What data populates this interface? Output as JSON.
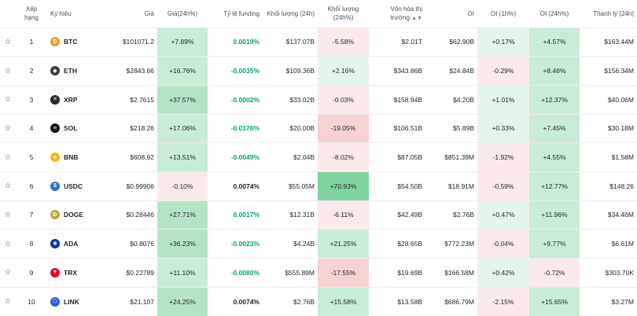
{
  "headers": {
    "rank": "Xếp hạng",
    "symbol": "Ký hiệu",
    "price": "Giá",
    "price_change": "Giá(24h%)",
    "funding": "Tỷ lệ funding",
    "volume": "Khối lượng (24h)",
    "volume_change": "Khối lượng (24h%)",
    "market_cap": "Vốn hóa thị trường",
    "oi": "OI",
    "oi_1h": "OI (1h%)",
    "oi_24h": "OI (24h%)",
    "liquidation": "Thanh lý (24h)"
  },
  "rows": [
    {
      "rank": "1",
      "symbol": "BTC",
      "icon": "btc-icon",
      "icon_color": "#f7931a",
      "icon_glyph": "₿",
      "price": "$101071.2",
      "price_change": "+7.89%",
      "pc_bg": "g2",
      "funding": "0.0019%",
      "f_cls": "fund-pos",
      "volume": "$137.07B",
      "volume_change": "-5.58%",
      "vc_bg": "r1",
      "market_cap": "$2.01T",
      "oi": "$62.90B",
      "oi_1h": "+0.17%",
      "o1_bg": "g1",
      "oi_24h": "+4.57%",
      "o24_bg": "g2",
      "liquidation": "$163.44M"
    },
    {
      "rank": "2",
      "symbol": "ETH",
      "icon": "eth-icon",
      "icon_color": "#3c3c3d",
      "icon_glyph": "◆",
      "price": "$2843.66",
      "price_change": "+16.76%",
      "pc_bg": "g2",
      "funding": "-0.0035%",
      "f_cls": "fund-pos",
      "volume": "$109.36B",
      "volume_change": "+2.16%",
      "vc_bg": "g1",
      "market_cap": "$343.86B",
      "oi": "$24.84B",
      "oi_1h": "-0.29%",
      "o1_bg": "r1",
      "oi_24h": "+8.46%",
      "o24_bg": "g2",
      "liquidation": "$156.34M"
    },
    {
      "rank": "3",
      "symbol": "XRP",
      "icon": "xrp-icon",
      "icon_color": "#23292f",
      "icon_glyph": "✕",
      "price": "$2.7615",
      "price_change": "+37.57%",
      "pc_bg": "g3",
      "funding": "-0.0002%",
      "f_cls": "fund-pos",
      "volume": "$33.02B",
      "volume_change": "-0.03%",
      "vc_bg": "r1",
      "market_cap": "$158.94B",
      "oi": "$4.20B",
      "oi_1h": "+1.01%",
      "o1_bg": "g1",
      "oi_24h": "+12.37%",
      "o24_bg": "g2",
      "liquidation": "$40.06M"
    },
    {
      "rank": "4",
      "symbol": "SOL",
      "icon": "sol-icon",
      "icon_color": "#14131a",
      "icon_glyph": "≡",
      "price": "$218.26",
      "price_change": "+17.06%",
      "pc_bg": "g2",
      "funding": "-0.0176%",
      "f_cls": "fund-pos",
      "volume": "$20.00B",
      "volume_change": "-19.05%",
      "vc_bg": "r2",
      "market_cap": "$106.51B",
      "oi": "$5.89B",
      "oi_1h": "+0.33%",
      "o1_bg": "g1",
      "oi_24h": "+7.45%",
      "o24_bg": "g2",
      "liquidation": "$30.18M"
    },
    {
      "rank": "5",
      "symbol": "BNB",
      "icon": "bnb-icon",
      "icon_color": "#f0b90b",
      "icon_glyph": "◈",
      "price": "$608.92",
      "price_change": "+13.51%",
      "pc_bg": "g2",
      "funding": "-0.0049%",
      "f_cls": "fund-pos",
      "volume": "$2.04B",
      "volume_change": "-8.02%",
      "vc_bg": "r1",
      "market_cap": "$87.05B",
      "oi": "$851.39M",
      "oi_1h": "-1.92%",
      "o1_bg": "r1",
      "oi_24h": "+4.55%",
      "o24_bg": "g2",
      "liquidation": "$1.58M"
    },
    {
      "rank": "6",
      "symbol": "USDC",
      "icon": "usdc-icon",
      "icon_color": "#2775ca",
      "icon_glyph": "$",
      "price": "$0.99906",
      "price_change": "-0.10%",
      "pc_bg": "r1",
      "funding": "0.0074%",
      "f_cls": "fund-neu",
      "volume": "$55.05M",
      "volume_change": "+70.93%",
      "vc_bg": "g4",
      "market_cap": "$54.50B",
      "oi": "$18.91M",
      "oi_1h": "-0.59%",
      "o1_bg": "r1",
      "oi_24h": "+12.77%",
      "o24_bg": "g2",
      "liquidation": "$148.26"
    },
    {
      "rank": "7",
      "symbol": "DOGE",
      "icon": "doge-icon",
      "icon_color": "#c2a633",
      "icon_glyph": "Ð",
      "price": "$0.28446",
      "price_change": "+27.71%",
      "pc_bg": "g3",
      "funding": "0.0017%",
      "f_cls": "fund-pos",
      "volume": "$12.31B",
      "volume_change": "-6.11%",
      "vc_bg": "r1",
      "market_cap": "$42.49B",
      "oi": "$2.76B",
      "oi_1h": "+0.47%",
      "o1_bg": "g1",
      "oi_24h": "+11.96%",
      "o24_bg": "g2",
      "liquidation": "$34.46M"
    },
    {
      "rank": "8",
      "symbol": "ADA",
      "icon": "ada-icon",
      "icon_color": "#0033ad",
      "icon_glyph": "✺",
      "price": "$0.8076",
      "price_change": "+36.23%",
      "pc_bg": "g3",
      "funding": "-0.0023%",
      "f_cls": "fund-pos",
      "volume": "$4.24B",
      "volume_change": "+21.25%",
      "vc_bg": "g2",
      "market_cap": "$28.65B",
      "oi": "$772.23M",
      "oi_1h": "-0.04%",
      "o1_bg": "r1",
      "oi_24h": "+9.77%",
      "o24_bg": "g2",
      "liquidation": "$6.61M"
    },
    {
      "rank": "9",
      "symbol": "TRX",
      "icon": "trx-icon",
      "icon_color": "#eb0029",
      "icon_glyph": "▼",
      "price": "$0.22789",
      "price_change": "+11.10%",
      "pc_bg": "g2",
      "funding": "-0.0080%",
      "f_cls": "fund-pos",
      "volume": "$555.89M",
      "volume_change": "-17.55%",
      "vc_bg": "r2",
      "market_cap": "$19.69B",
      "oi": "$166.58M",
      "oi_1h": "+0.42%",
      "o1_bg": "g1",
      "oi_24h": "-0.72%",
      "o24_bg": "r1",
      "liquidation": "$303.70K"
    },
    {
      "rank": "10",
      "symbol": "LINK",
      "icon": "link-icon",
      "icon_color": "#2a5ada",
      "icon_glyph": "⬡",
      "price": "$21.107",
      "price_change": "+24.25%",
      "pc_bg": "g3",
      "funding": "0.0074%",
      "f_cls": "fund-neu",
      "volume": "$2.76B",
      "volume_change": "+15.58%",
      "vc_bg": "g2",
      "market_cap": "$13.58B",
      "oi": "$686.79M",
      "oi_1h": "-2.15%",
      "o1_bg": "r1",
      "oi_24h": "+15.65%",
      "o24_bg": "g2",
      "liquidation": "$3.27M"
    }
  ]
}
